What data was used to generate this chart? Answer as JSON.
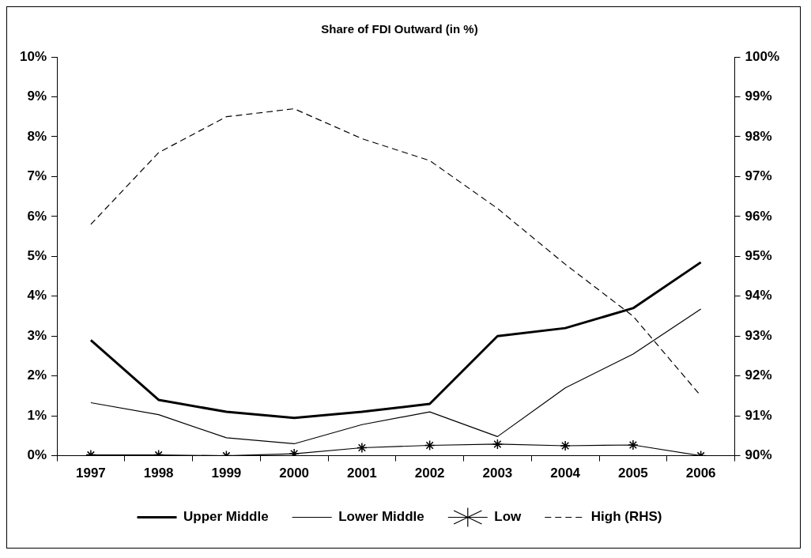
{
  "chart_data": {
    "type": "line",
    "title": "Share of FDI Outward (in %)",
    "categories": [
      "1997",
      "1998",
      "1999",
      "2000",
      "2001",
      "2002",
      "2003",
      "2004",
      "2005",
      "2006"
    ],
    "series": [
      {
        "name": "Upper Middle",
        "color": "#000000",
        "marker": "none",
        "values": [
          2.9,
          1.4,
          1.1,
          0.95,
          1.1,
          1.3,
          3.0,
          3.2,
          3.7,
          4.85
        ]
      },
      {
        "name": "Lower Middle",
        "color": "#000000",
        "marker": "none",
        "values": [
          1.33,
          1.03,
          0.45,
          0.3,
          0.78,
          1.1,
          0.48,
          1.7,
          2.55,
          3.68
        ]
      },
      {
        "name": "Low",
        "color": "#000000",
        "marker": "cross",
        "values": [
          0.02,
          0.02,
          0.0,
          0.05,
          0.2,
          0.26,
          0.29,
          0.25,
          0.27,
          0.0
        ]
      },
      {
        "name": "High (RHS)",
        "color": "#000000",
        "marker": "none",
        "line_style": "dashed",
        "axis": "y2",
        "values": [
          95.8,
          97.6,
          98.5,
          98.7,
          97.95,
          97.4,
          96.2,
          94.8,
          93.5,
          91.5
        ]
      }
    ],
    "ylim": [
      0,
      10
    ],
    "yticks": [
      {
        "value": 0,
        "label": "0%"
      },
      {
        "value": 1,
        "label": "1%"
      },
      {
        "value": 2,
        "label": "2%"
      },
      {
        "value": 3,
        "label": "3%"
      },
      {
        "value": 4,
        "label": "4%"
      },
      {
        "value": 5,
        "label": "5%"
      },
      {
        "value": 6,
        "label": "6%"
      },
      {
        "value": 7,
        "label": "7%"
      },
      {
        "value": 8,
        "label": "8%"
      },
      {
        "value": 9,
        "label": "9%"
      },
      {
        "value": 10,
        "label": "10%"
      }
    ],
    "y2lim": [
      90,
      100
    ],
    "y2ticks": [
      {
        "value": 90,
        "label": "90%"
      },
      {
        "value": 91,
        "label": "91%"
      },
      {
        "value": 92,
        "label": "92%"
      },
      {
        "value": 93,
        "label": "93%"
      },
      {
        "value": 94,
        "label": "94%"
      },
      {
        "value": 95,
        "label": "95%"
      },
      {
        "value": 96,
        "label": "96%"
      },
      {
        "value": 97,
        "label": "97%"
      },
      {
        "value": 98,
        "label": "98%"
      },
      {
        "value": 99,
        "label": "99%"
      },
      {
        "value": 100,
        "label": "100%"
      }
    ],
    "grid": false,
    "legend": "bottom"
  }
}
